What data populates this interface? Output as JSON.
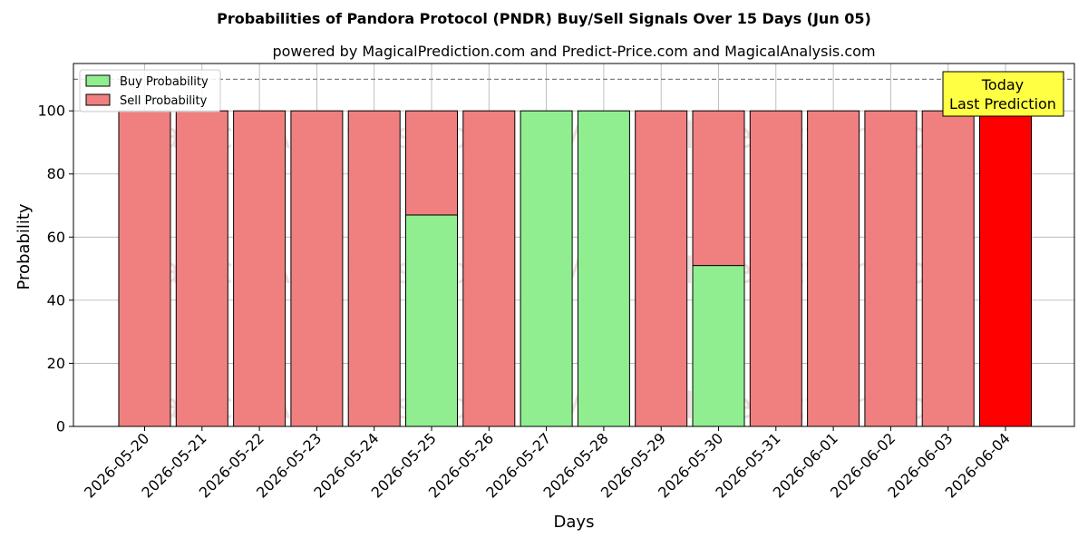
{
  "chart_data": {
    "type": "bar",
    "title": "Probabilities of Pandora Protocol (PNDR) Buy/Sell Signals Over 15 Days (Jun 05)",
    "subtitle": "powered by MagicalPrediction.com and Predict-Price.com and MagicalAnalysis.com",
    "xlabel": "Days",
    "ylabel": "Probability",
    "ylim": [
      0,
      115
    ],
    "yticks": [
      0,
      20,
      40,
      60,
      80,
      100
    ],
    "reference_line": 110,
    "grid": true,
    "legend_placement": "top-left",
    "categories": [
      "2026-05-20",
      "2026-05-21",
      "2026-05-22",
      "2026-05-23",
      "2026-05-24",
      "2026-05-25",
      "2026-05-26",
      "2026-05-27",
      "2026-05-28",
      "2026-05-29",
      "2026-05-30",
      "2026-05-31",
      "2026-06-01",
      "2026-06-02",
      "2026-06-03",
      "2026-06-04"
    ],
    "series": [
      {
        "name": "Buy Probability",
        "color": "#90ee90",
        "values": [
          0,
          0,
          0,
          0,
          0,
          67,
          0,
          100,
          100,
          0,
          51,
          0,
          0,
          0,
          0,
          0
        ]
      },
      {
        "name": "Sell Probability",
        "color": "#f08080",
        "values": [
          100,
          100,
          100,
          100,
          100,
          33,
          100,
          0,
          0,
          100,
          49,
          100,
          100,
          100,
          100,
          100
        ]
      }
    ],
    "highlight": {
      "index": 15,
      "color": "#ff0000"
    },
    "annotation": {
      "line1": "Today",
      "line2": "Last Prediction",
      "color": "#ffff44"
    },
    "watermarks": [
      "MagicalAnalysis.com",
      "MagicalPrediction.com"
    ]
  }
}
